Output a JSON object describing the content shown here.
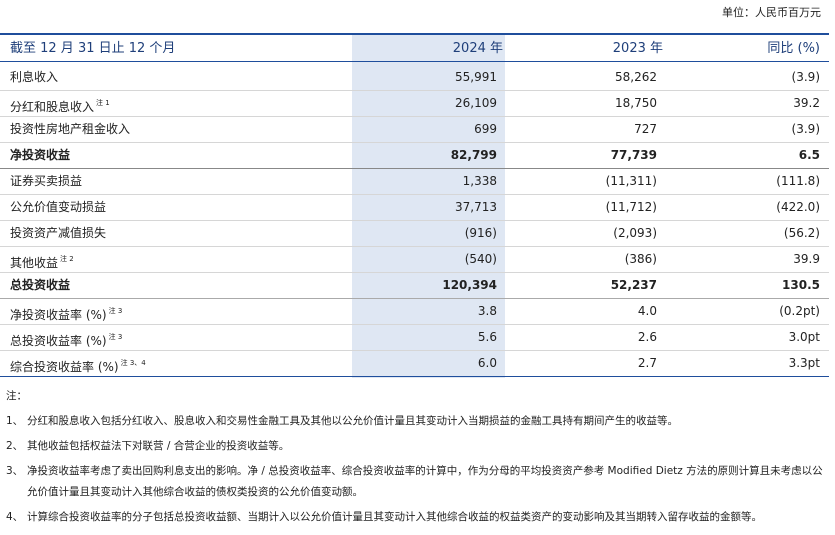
{
  "unit": "单位：人民币百万元",
  "table": {
    "header": [
      "截至 12 月 31 日止 12 个月",
      "2024 年",
      "2023 年",
      "同比 (%)"
    ],
    "rows": [
      {
        "label": "利息收入",
        "values": [
          "55,991",
          "58,262",
          "(3.9)"
        ]
      },
      {
        "label": "分红和股息收入",
        "note": "注 1",
        "values": [
          "26,109",
          "18,750",
          "39.2"
        ]
      },
      {
        "label": "投资性房地产租金收入",
        "values": [
          "699",
          "727",
          "(3.9)"
        ]
      },
      {
        "label": "净投资收益",
        "values": [
          "82,799",
          "77,739",
          "6.5"
        ]
      },
      {
        "label": "证券买卖损益",
        "values": [
          "1,338",
          "(11,311)",
          "(111.8)"
        ]
      },
      {
        "label": "公允价值变动损益",
        "values": [
          "37,713",
          "(11,712)",
          "(422.0)"
        ]
      },
      {
        "label": "投资资产减值损失",
        "values": [
          "(916)",
          "(2,093)",
          "(56.2)"
        ]
      },
      {
        "label": "其他收益",
        "note": "注 2",
        "values": [
          "(540)",
          "(386)",
          "39.9"
        ]
      },
      {
        "label": "总投资收益",
        "values": [
          "120,394",
          "52,237",
          "130.5"
        ]
      },
      {
        "label": "净投资收益率 (%)",
        "note": "注 3",
        "values": [
          "3.8",
          "4.0",
          "(0.2pt)"
        ]
      },
      {
        "label": "总投资收益率 (%)",
        "note": "注 3",
        "values": [
          "5.6",
          "2.6",
          "3.0pt"
        ]
      },
      {
        "label": "综合投资收益率 (%)",
        "note": "注 3、4",
        "values": [
          "6.0",
          "2.7",
          "3.3pt"
        ]
      }
    ]
  },
  "notes": {
    "title": "注：",
    "items": [
      {
        "marker": "1、",
        "text": "分红和股息收入包括分红收入、股息收入和交易性金融工具及其他以公允价值计量且其变动计入当期损益的金融工具持有期间产生的收益等。"
      },
      {
        "marker": "2、",
        "text": "其他收益包括权益法下对联营 / 合营企业的投资收益等。"
      },
      {
        "marker": "3、",
        "text": "净投资收益率考虑了卖出回购利息支出的影响。净 / 总投资收益率、综合投资收益率的计算中，作为分母的平均投资资产参考 Modified Dietz 方法的原则计算且未考虑以公允价值计量且其变动计入其他综合收益的债权类投资的公允价值变动额。"
      },
      {
        "marker": "4、",
        "text": "计算综合投资收益率的分子包括总投资收益额、当期计入以公允价值计量且其变动计入其他综合收益的权益类资产的变动影响及其当期转入留存收益的金额等。"
      }
    ]
  }
}
